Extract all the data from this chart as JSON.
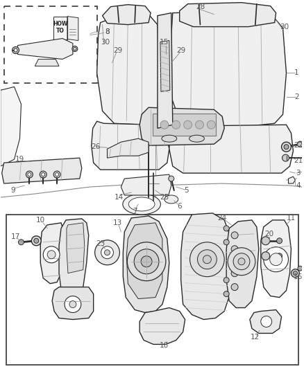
{
  "bg_color": "#ffffff",
  "line_color": "#2a2a2a",
  "label_color": "#555555",
  "figsize": [
    4.38,
    5.33
  ],
  "dpi": 100,
  "lw_main": 1.0,
  "lw_thin": 0.6,
  "lw_thick": 1.4
}
